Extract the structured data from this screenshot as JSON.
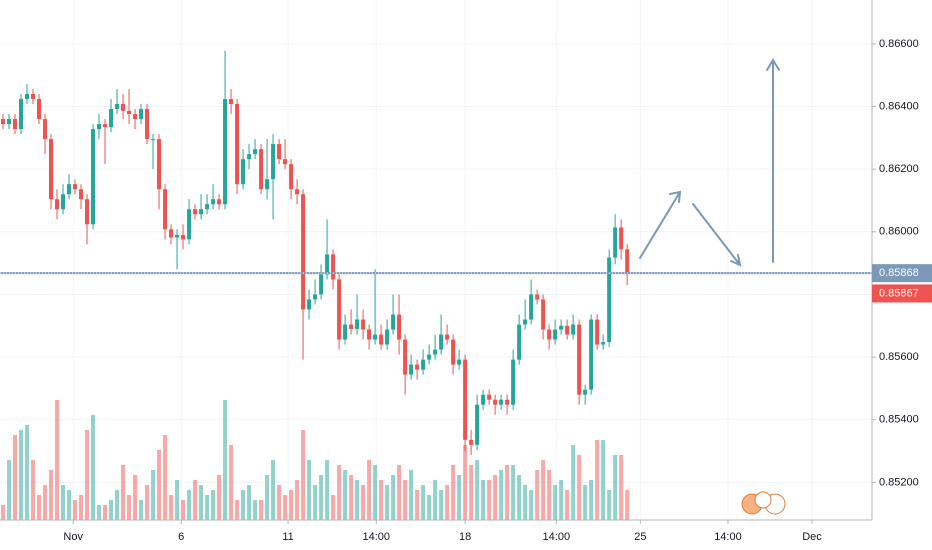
{
  "chart_data": {
    "type": "candlestick",
    "up_color": "#26a69a",
    "down_color": "#ef5350",
    "grid": true,
    "ylim": [
      0.8508,
      0.8674
    ],
    "yticks": [
      {
        "value": 0.852,
        "label": "0.85200"
      },
      {
        "value": 0.854,
        "label": "0.85400"
      },
      {
        "value": 0.856,
        "label": "0.85600"
      },
      {
        "value": 0.858,
        "label": "0.85800"
      },
      {
        "value": 0.86,
        "label": "0.86000"
      },
      {
        "value": 0.862,
        "label": "0.86200"
      },
      {
        "value": 0.864,
        "label": "0.86400"
      },
      {
        "value": 0.866,
        "label": "0.86600"
      }
    ],
    "xlim": [
      -0.5,
      144.8
    ],
    "xticks": [
      {
        "value": 11.7,
        "label": "Nov"
      },
      {
        "value": 29.7,
        "label": "6"
      },
      {
        "value": 47.5,
        "label": "11"
      },
      {
        "value": 62.2,
        "label": "14:00"
      },
      {
        "value": 77.0,
        "label": "18"
      },
      {
        "value": 92.2,
        "label": "14:00"
      },
      {
        "value": 106.2,
        "label": "25"
      },
      {
        "value": 120.8,
        "label": "14:00"
      },
      {
        "value": 134.8,
        "label": "Dec"
      }
    ],
    "price_lines": [
      {
        "value": 0.85868,
        "label": "0.85868",
        "color": "#7b98b8"
      },
      {
        "value": 0.85867,
        "label": "0.85867",
        "color": "#ef5350"
      }
    ],
    "open": [
      0.8636,
      0.86344,
      0.8636,
      0.86328,
      0.86424,
      0.8644,
      0.86424,
      0.8636,
      0.86296,
      0.86104,
      0.86072,
      0.8612,
      0.86152,
      0.86136,
      0.86104,
      0.86024,
      0.86328,
      0.86344,
      0.86334,
      0.86392,
      0.86408,
      0.86386,
      0.86376,
      0.8636,
      0.86392,
      0.86296,
      0.86296,
      0.86136,
      0.86008,
      0.85982,
      0.8599,
      0.85976,
      0.86072,
      0.86056,
      0.86072,
      0.86088,
      0.86104,
      0.86088,
      0.86424,
      0.86408,
      0.86152,
      0.86232,
      0.86248,
      0.86264,
      0.86136,
      0.86168,
      0.8628,
      0.86232,
      0.86216,
      0.86136,
      0.8612,
      0.85752,
      0.85784,
      0.858,
      0.85864,
      0.85928,
      0.85848,
      0.85656,
      0.85704,
      0.8569,
      0.8572,
      0.85688,
      0.85656,
      0.85672,
      0.8564,
      0.85688,
      0.85736,
      0.85656,
      0.85544,
      0.85576,
      0.8556,
      0.85592,
      0.85608,
      0.85624,
      0.85672,
      0.85656,
      0.85576,
      0.85592,
      0.85336,
      0.8532,
      0.85448,
      0.8548,
      0.85464,
      0.85448,
      0.85464,
      0.85448,
      0.85592,
      0.85704,
      0.8572,
      0.858,
      0.85784,
      0.85688,
      0.85656,
      0.85688,
      0.857,
      0.85672,
      0.85704,
      0.8548,
      0.85496,
      0.8572,
      0.8564,
      0.85648,
      0.85918,
      0.86014,
      0.85944
    ],
    "high": [
      0.86376,
      0.86376,
      0.86376,
      0.8644,
      0.86472,
      0.86456,
      0.8644,
      0.86376,
      0.86312,
      0.86136,
      0.86152,
      0.86184,
      0.86168,
      0.86152,
      0.8612,
      0.86344,
      0.86376,
      0.8636,
      0.86424,
      0.86456,
      0.8644,
      0.86456,
      0.86392,
      0.86408,
      0.86408,
      0.86312,
      0.86312,
      0.86152,
      0.86024,
      0.86008,
      0.86024,
      0.86104,
      0.86088,
      0.8612,
      0.8612,
      0.86152,
      0.8612,
      0.86578,
      0.86456,
      0.86424,
      0.86264,
      0.8628,
      0.86296,
      0.8628,
      0.86296,
      0.86312,
      0.86296,
      0.86296,
      0.86232,
      0.86168,
      0.86136,
      0.85816,
      0.85848,
      0.85896,
      0.8604,
      0.85944,
      0.85864,
      0.85736,
      0.85752,
      0.858,
      0.85752,
      0.85704,
      0.8588,
      0.85704,
      0.8572,
      0.858,
      0.858,
      0.85672,
      0.85608,
      0.85592,
      0.85624,
      0.8564,
      0.85672,
      0.85736,
      0.85704,
      0.85672,
      0.85624,
      0.85608,
      0.85368,
      0.8548,
      0.85496,
      0.85496,
      0.8548,
      0.8548,
      0.8548,
      0.85624,
      0.85736,
      0.85784,
      0.85848,
      0.85816,
      0.858,
      0.85704,
      0.8572,
      0.8572,
      0.8572,
      0.85736,
      0.8572,
      0.85512,
      0.85736,
      0.85736,
      0.85672,
      0.85944,
      0.86056,
      0.8604,
      0.8596
    ],
    "low": [
      0.86328,
      0.86328,
      0.86312,
      0.86312,
      0.86408,
      0.86408,
      0.86344,
      0.86248,
      0.86072,
      0.8604,
      0.86056,
      0.86104,
      0.8612,
      0.86072,
      0.8596,
      0.86008,
      0.86296,
      0.86216,
      0.86318,
      0.86376,
      0.8636,
      0.86344,
      0.86328,
      0.86344,
      0.8628,
      0.862,
      0.86072,
      0.85976,
      0.8596,
      0.8588,
      0.85944,
      0.8596,
      0.8604,
      0.8604,
      0.86056,
      0.86072,
      0.86072,
      0.86072,
      0.86376,
      0.8612,
      0.86136,
      0.862,
      0.86232,
      0.8612,
      0.86104,
      0.8604,
      0.86216,
      0.862,
      0.86104,
      0.86088,
      0.85592,
      0.8572,
      0.85768,
      0.85784,
      0.85848,
      0.85816,
      0.85624,
      0.8564,
      0.85672,
      0.85672,
      0.85656,
      0.85624,
      0.8564,
      0.85624,
      0.85624,
      0.85672,
      0.85608,
      0.8548,
      0.85528,
      0.85528,
      0.85544,
      0.85576,
      0.85592,
      0.85608,
      0.8564,
      0.85544,
      0.8556,
      0.853,
      0.85288,
      0.85304,
      0.85432,
      0.85448,
      0.85416,
      0.85432,
      0.85416,
      0.85432,
      0.85576,
      0.85688,
      0.85704,
      0.85768,
      0.85656,
      0.85624,
      0.8564,
      0.85672,
      0.85656,
      0.85656,
      0.85448,
      0.85448,
      0.8548,
      0.85624,
      0.85624,
      0.85632,
      0.85896,
      0.85912,
      0.8583
    ],
    "close": [
      0.86344,
      0.8636,
      0.86328,
      0.86424,
      0.8644,
      0.86424,
      0.8636,
      0.86296,
      0.86104,
      0.86072,
      0.8612,
      0.86152,
      0.86136,
      0.86104,
      0.86024,
      0.86328,
      0.86344,
      0.86334,
      0.86392,
      0.86408,
      0.86386,
      0.86376,
      0.8636,
      0.86392,
      0.86296,
      0.86296,
      0.86136,
      0.86008,
      0.85982,
      0.8599,
      0.85976,
      0.86072,
      0.86056,
      0.86072,
      0.86088,
      0.86104,
      0.86088,
      0.86424,
      0.86408,
      0.86152,
      0.86232,
      0.86248,
      0.86264,
      0.86136,
      0.86168,
      0.8628,
      0.86232,
      0.86216,
      0.86136,
      0.8612,
      0.85752,
      0.85784,
      0.858,
      0.85864,
      0.85928,
      0.85848,
      0.85656,
      0.85704,
      0.8569,
      0.8572,
      0.85688,
      0.85656,
      0.85672,
      0.8564,
      0.85688,
      0.85736,
      0.85656,
      0.85544,
      0.85576,
      0.8556,
      0.85592,
      0.85608,
      0.85624,
      0.85672,
      0.85656,
      0.85576,
      0.85592,
      0.85336,
      0.8532,
      0.85448,
      0.8548,
      0.85464,
      0.85448,
      0.85464,
      0.85448,
      0.85592,
      0.85704,
      0.8572,
      0.858,
      0.85784,
      0.85688,
      0.85656,
      0.85688,
      0.857,
      0.85672,
      0.85704,
      0.8548,
      0.85496,
      0.8572,
      0.8564,
      0.85648,
      0.85918,
      0.86014,
      0.85944,
      0.85867
    ],
    "volume": [
      15,
      60,
      85,
      90,
      95,
      60,
      25,
      35,
      50,
      120,
      35,
      30,
      20,
      25,
      90,
      105,
      15,
      15,
      20,
      30,
      55,
      25,
      45,
      20,
      35,
      50,
      70,
      85,
      25,
      40,
      20,
      30,
      40,
      35,
      25,
      30,
      45,
      120,
      75,
      20,
      30,
      35,
      20,
      20,
      45,
      60,
      35,
      25,
      30,
      40,
      90,
      60,
      35,
      45,
      60,
      25,
      55,
      50,
      45,
      40,
      35,
      60,
      55,
      40,
      35,
      45,
      55,
      40,
      50,
      30,
      35,
      25,
      40,
      30,
      35,
      55,
      45,
      75,
      55,
      60,
      40,
      40,
      45,
      50,
      55,
      55,
      45,
      35,
      30,
      50,
      60,
      50,
      35,
      40,
      30,
      75,
      65,
      35,
      40,
      80,
      80,
      30,
      65,
      65,
      30
    ]
  }
}
